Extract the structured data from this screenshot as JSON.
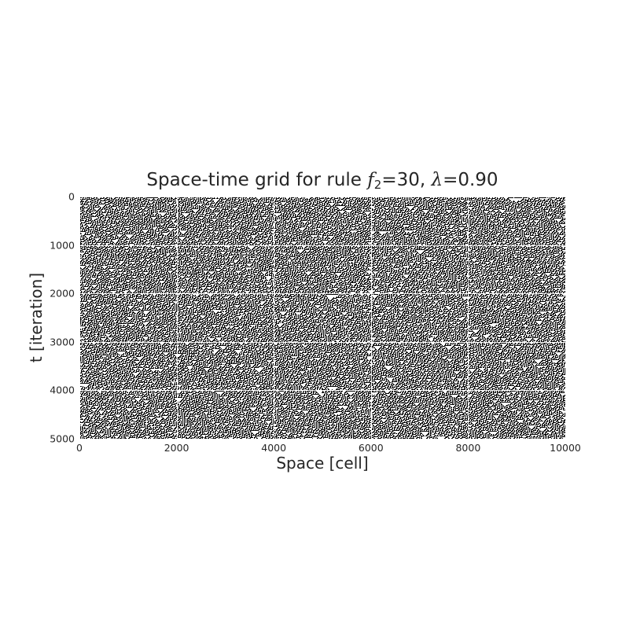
{
  "chart_data": {
    "type": "heatmap",
    "title_parts": {
      "prefix": "Space-time grid for rule ",
      "f_symbol": "f",
      "f_subscript": "2",
      "rule_value": "=30, ",
      "lambda_symbol": "λ",
      "lambda_value": "=0.90"
    },
    "xlabel": "Space [cell]",
    "ylabel": "t [iteration]",
    "xlim": [
      0,
      10000
    ],
    "ylim": [
      5000,
      0
    ],
    "x_ticks": [
      "0",
      "2000",
      "4000",
      "6000",
      "8000",
      "10000"
    ],
    "y_ticks": [
      "0",
      "1000",
      "2000",
      "3000",
      "4000",
      "5000"
    ],
    "rule": 30,
    "lambda": 0.9,
    "cell_values": [
      0,
      1
    ],
    "colormap": {
      "0": "#ffffff",
      "1": "#000000"
    },
    "grid": true,
    "grid_color": "#ffffff"
  }
}
